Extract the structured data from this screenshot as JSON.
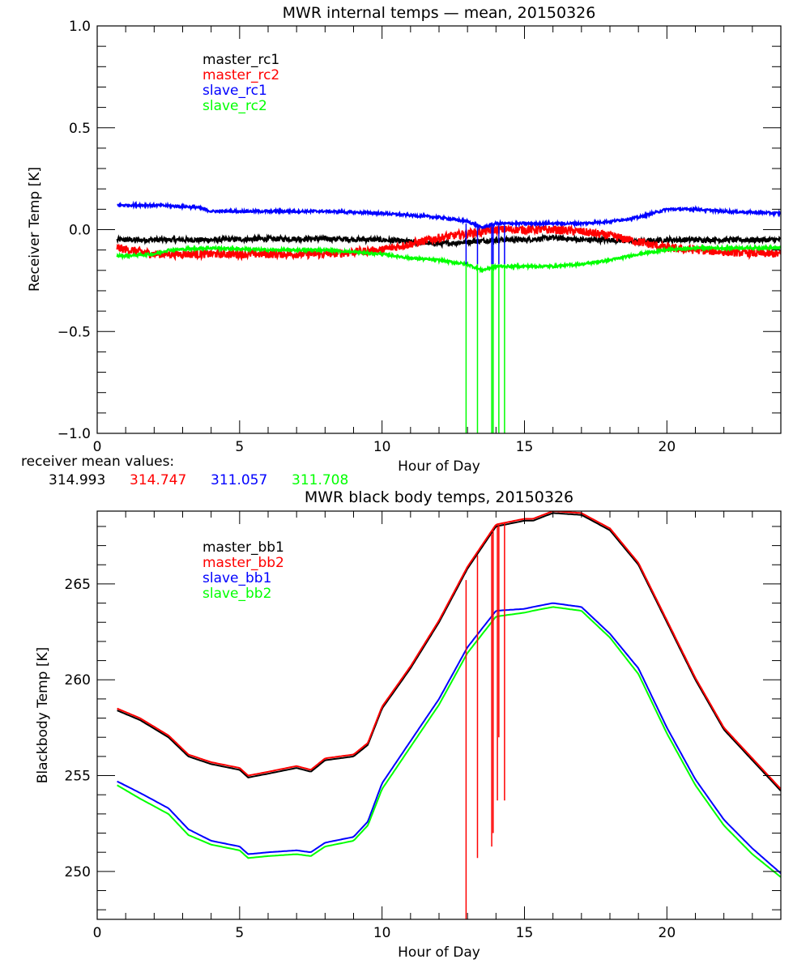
{
  "chart_data": [
    {
      "type": "line",
      "title": "MWR internal temps — mean, 20150326",
      "xlabel": "Hour of Day",
      "ylabel": "Receiver Temp [K]",
      "xlim": [
        0,
        24
      ],
      "ylim": [
        -1.0,
        1.0
      ],
      "xticks": [
        0,
        5,
        10,
        15,
        20
      ],
      "xtick_labels": [
        "0",
        "5",
        "10",
        "15",
        "20"
      ],
      "yticks": [
        -1.0,
        -0.5,
        0.0,
        0.5,
        1.0
      ],
      "ytick_labels": [
        "−1.0",
        "−0.5",
        "0.0",
        "0.5",
        "1.0"
      ],
      "grid": false,
      "legend_position": "top-left",
      "noise": [
        0.012,
        0.02,
        0.006,
        0.006
      ],
      "series": [
        {
          "name": "master_rc1",
          "color": "#000000",
          "x": [
            0.7,
            2,
            4,
            6,
            8,
            10,
            12,
            13,
            14,
            15,
            16,
            17,
            18,
            19,
            20,
            22,
            24
          ],
          "y": [
            -0.05,
            -0.05,
            -0.05,
            -0.045,
            -0.045,
            -0.05,
            -0.07,
            -0.06,
            -0.05,
            -0.05,
            -0.04,
            -0.05,
            -0.05,
            -0.06,
            -0.05,
            -0.05,
            -0.05
          ]
        },
        {
          "name": "master_rc2",
          "color": "#ff0000",
          "x": [
            0.7,
            2,
            4,
            6,
            8,
            10,
            11,
            12,
            13,
            14,
            15,
            16,
            17,
            18,
            19,
            20,
            22,
            24
          ],
          "y": [
            -0.09,
            -0.12,
            -0.12,
            -0.12,
            -0.12,
            -0.1,
            -0.07,
            -0.04,
            -0.02,
            0.0,
            0.0,
            0.0,
            -0.01,
            -0.03,
            -0.06,
            -0.09,
            -0.11,
            -0.12
          ]
        },
        {
          "name": "slave_rc1",
          "color": "#0000ff",
          "x": [
            0.7,
            2,
            3.5,
            4,
            6,
            8,
            10,
            11,
            12,
            13,
            13.5,
            14,
            15,
            16,
            17,
            18,
            19,
            20,
            21,
            22,
            24
          ],
          "y": [
            0.12,
            0.12,
            0.11,
            0.09,
            0.09,
            0.09,
            0.08,
            0.07,
            0.06,
            0.04,
            0.01,
            0.03,
            0.03,
            0.03,
            0.03,
            0.04,
            0.06,
            0.1,
            0.1,
            0.09,
            0.08
          ]
        },
        {
          "name": "slave_rc2",
          "color": "#00ff00",
          "x": [
            0.7,
            2,
            2.5,
            4,
            6,
            8,
            10,
            11,
            12,
            13,
            13.5,
            14,
            15,
            16,
            17,
            18,
            19,
            20,
            21,
            22,
            24
          ],
          "y": [
            -0.13,
            -0.12,
            -0.1,
            -0.09,
            -0.1,
            -0.1,
            -0.12,
            -0.14,
            -0.15,
            -0.17,
            -0.2,
            -0.18,
            -0.18,
            -0.18,
            -0.17,
            -0.15,
            -0.12,
            -0.1,
            -0.09,
            -0.09,
            -0.09
          ]
        }
      ],
      "spikes": [
        {
          "color": "#0000ff",
          "x": [
            12.95,
            13.35,
            13.85,
            13.9,
            14.1,
            14.3
          ],
          "y_from": 0.03,
          "y_to": -0.17
        },
        {
          "color": "#00ff00",
          "x": [
            12.95,
            13.35,
            13.85,
            13.9,
            14.1,
            14.3
          ],
          "y_from": -0.17,
          "y_to": -1.0
        }
      ],
      "annotation": {
        "label": "receiver mean values:",
        "values": [
          {
            "text": "314.993",
            "color": "#000000"
          },
          {
            "text": "314.747",
            "color": "#ff0000"
          },
          {
            "text": "311.057",
            "color": "#0000ff"
          },
          {
            "text": "311.708",
            "color": "#00ff00"
          }
        ]
      }
    },
    {
      "type": "line",
      "title": "MWR black body temps, 20150326",
      "xlabel": "Hour of Day",
      "ylabel": "Blackbody Temp [K]",
      "xlim": [
        0,
        24
      ],
      "ylim": [
        247.5,
        268.8
      ],
      "xticks": [
        0,
        5,
        10,
        15,
        20
      ],
      "xtick_labels": [
        "0",
        "5",
        "10",
        "15",
        "20"
      ],
      "yticks": [
        250,
        255,
        260,
        265
      ],
      "ytick_labels": [
        "250",
        "255",
        "260",
        "265"
      ],
      "grid": false,
      "legend_position": "top-left",
      "series": [
        {
          "name": "master_bb1",
          "color": "#000000",
          "x": [
            0.7,
            1.5,
            2.5,
            3.2,
            4,
            5,
            5.3,
            6,
            7,
            7.5,
            8,
            9,
            9.5,
            10,
            11,
            12,
            13,
            14,
            15,
            15.3,
            16,
            17,
            18,
            19,
            20,
            21,
            22,
            23,
            24
          ],
          "y": [
            258.4,
            257.9,
            257.0,
            256.0,
            255.6,
            255.3,
            254.9,
            255.1,
            255.4,
            255.2,
            255.8,
            256.0,
            256.6,
            258.5,
            260.6,
            263.0,
            265.8,
            268.0,
            268.3,
            268.3,
            268.7,
            268.6,
            267.8,
            266.0,
            263.0,
            260.0,
            257.4,
            255.8,
            254.2
          ]
        },
        {
          "name": "master_bb2",
          "color": "#ff0000",
          "x": [
            0.7,
            1.5,
            2.5,
            3.2,
            4,
            5,
            5.3,
            6,
            7,
            7.5,
            8,
            9,
            9.5,
            10,
            11,
            12,
            13,
            14,
            15,
            15.3,
            16,
            17,
            18,
            19,
            20,
            21,
            22,
            23,
            24
          ],
          "y": [
            258.5,
            258.0,
            257.1,
            256.1,
            255.7,
            255.4,
            255.0,
            255.2,
            255.5,
            255.3,
            255.9,
            256.1,
            256.7,
            258.6,
            260.7,
            263.1,
            265.9,
            268.1,
            268.4,
            268.4,
            268.8,
            268.7,
            267.9,
            266.1,
            263.1,
            260.1,
            257.5,
            255.9,
            254.3
          ]
        },
        {
          "name": "slave_bb1",
          "color": "#0000ff",
          "x": [
            0.7,
            1.5,
            2.5,
            3.2,
            4,
            5,
            5.3,
            6,
            7,
            7.5,
            8,
            9,
            9.5,
            10,
            11,
            12,
            13,
            14,
            15,
            15.3,
            16,
            17,
            18,
            19,
            20,
            21,
            22,
            23,
            24
          ],
          "y": [
            254.7,
            254.1,
            253.3,
            252.2,
            251.6,
            251.3,
            250.9,
            251.0,
            251.1,
            251.0,
            251.5,
            251.8,
            252.6,
            254.6,
            256.8,
            259.0,
            261.7,
            263.6,
            263.7,
            263.8,
            264.0,
            263.8,
            262.4,
            260.6,
            257.5,
            254.8,
            252.7,
            251.2,
            249.9
          ]
        },
        {
          "name": "slave_bb2",
          "color": "#00ff00",
          "x": [
            0.7,
            1.5,
            2.5,
            3.2,
            4,
            5,
            5.3,
            6,
            7,
            7.5,
            8,
            9,
            9.5,
            10,
            11,
            12,
            13,
            14,
            15,
            15.3,
            16,
            17,
            18,
            19,
            20,
            21,
            22,
            23,
            24
          ],
          "y": [
            254.5,
            253.8,
            253.0,
            251.9,
            251.4,
            251.1,
            250.7,
            250.8,
            250.9,
            250.8,
            251.3,
            251.6,
            252.4,
            254.3,
            256.5,
            258.7,
            261.4,
            263.3,
            263.5,
            263.6,
            263.8,
            263.6,
            262.2,
            260.3,
            257.2,
            254.5,
            252.4,
            250.9,
            249.7
          ]
        }
      ],
      "spikes": [
        {
          "color": "#ff0000",
          "x": 12.95,
          "y_from": 265.2,
          "y_to": 247.5
        },
        {
          "color": "#ff0000",
          "x": 13.35,
          "y_from": 266.5,
          "y_to": 250.7
        },
        {
          "color": "#ff0000",
          "x": 13.85,
          "y_from": 267.6,
          "y_to": 251.3
        },
        {
          "color": "#ff0000",
          "x": 13.9,
          "y_from": 267.8,
          "y_to": 252.0
        },
        {
          "color": "#ff0000",
          "x": 14.05,
          "y_from": 268.0,
          "y_to": 253.7
        },
        {
          "color": "#ff0000",
          "x": 14.1,
          "y_from": 268.1,
          "y_to": 257.0
        },
        {
          "color": "#ff0000",
          "x": 14.3,
          "y_from": 268.2,
          "y_to": 253.7
        }
      ]
    }
  ]
}
